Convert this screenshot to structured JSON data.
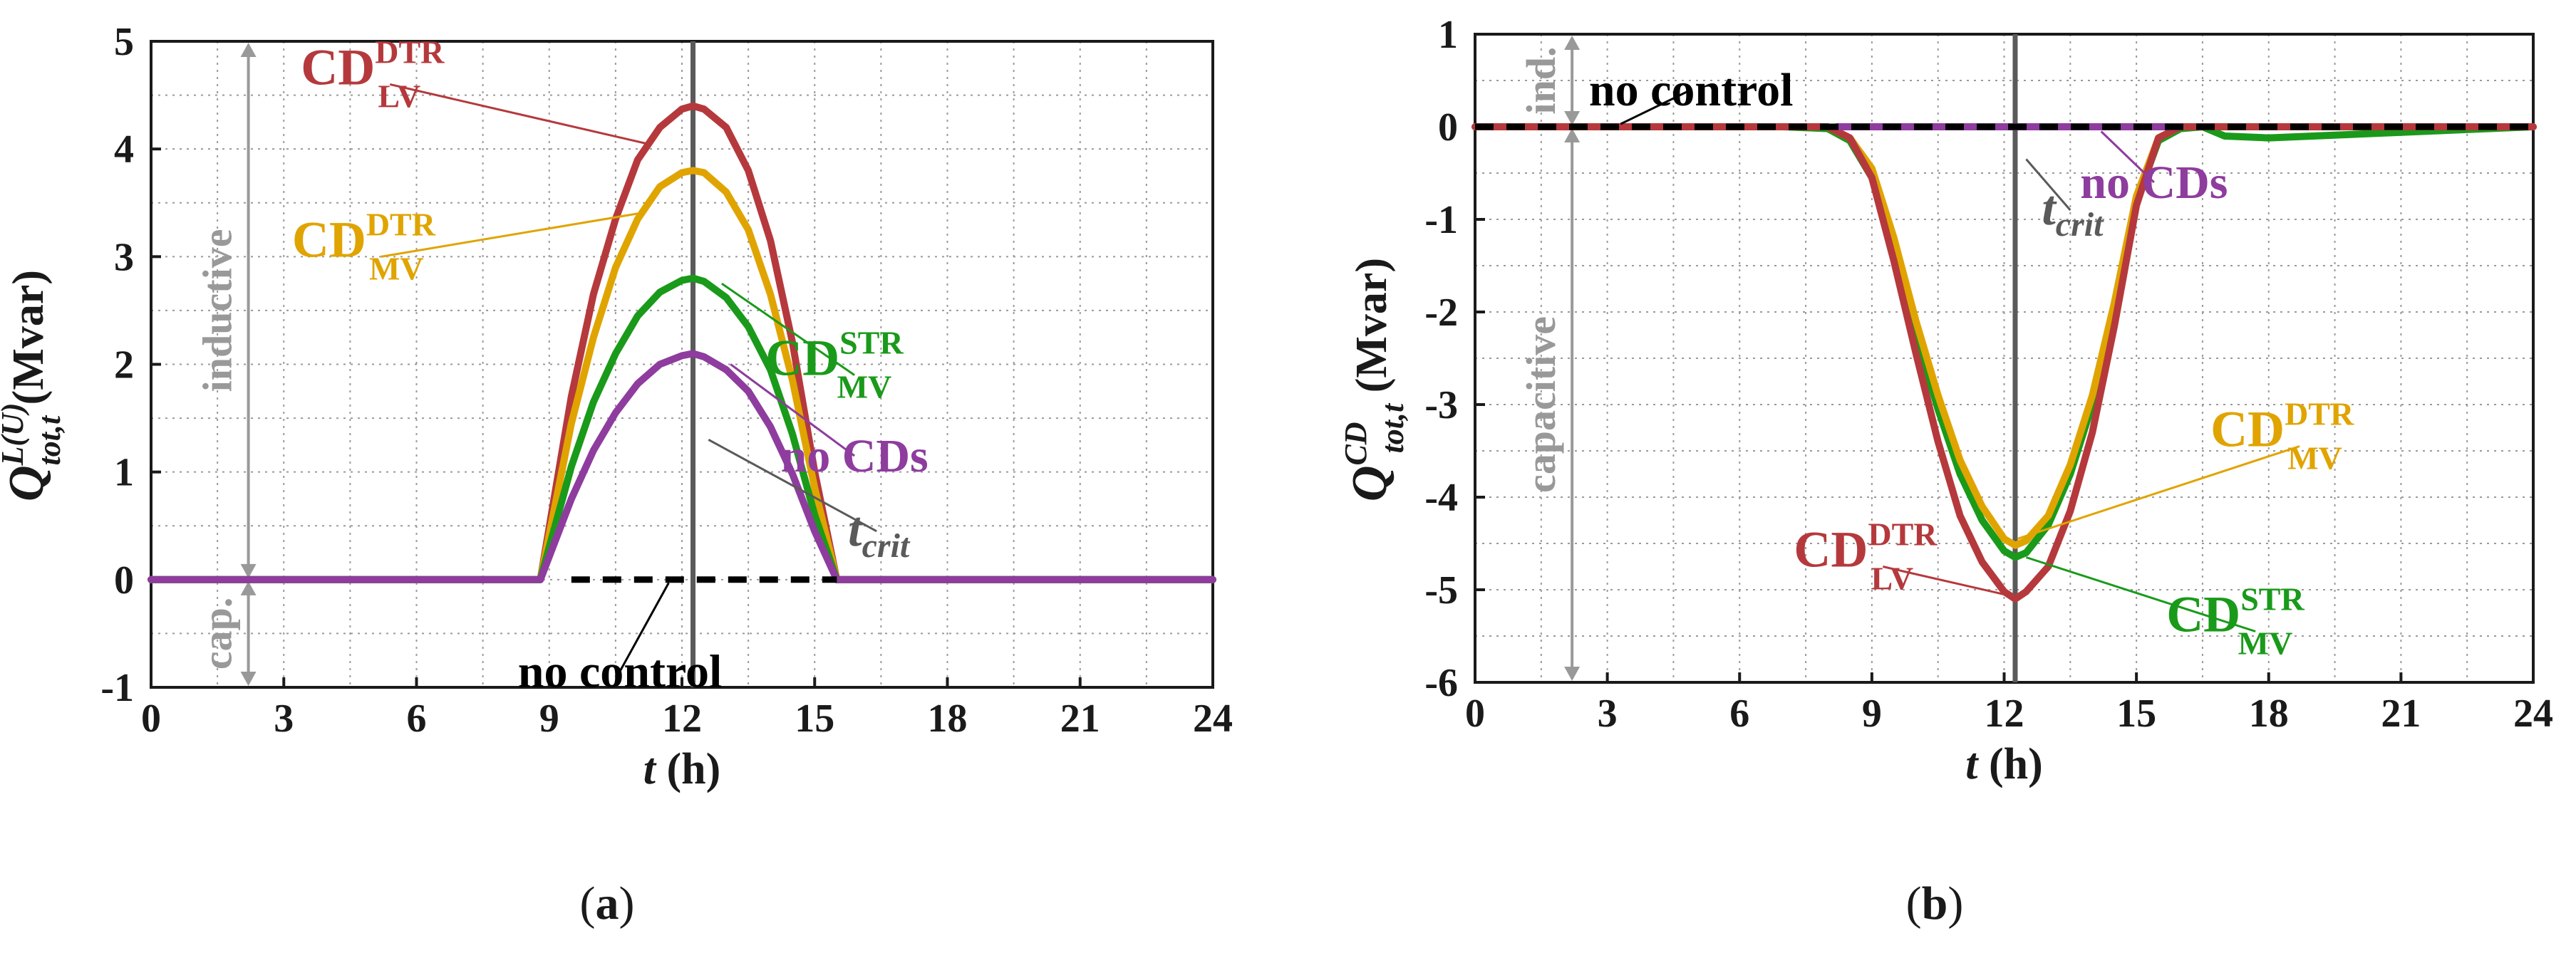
{
  "colors": {
    "lv_dtr": "#b5393c",
    "mv_dtr": "#e0a400",
    "mv_str": "#1a9a1a",
    "no_cds": "#8e3c9e",
    "no_control": "#000000",
    "region": "#999999",
    "tcrit_line": "#5a5a5a"
  },
  "chart_data": [
    {
      "id": "a",
      "type": "line",
      "caption": {
        "open": "(",
        "letter": "a",
        "close": ")"
      },
      "xlabel": {
        "var": "t",
        "unit": "(h)"
      },
      "ylabel": {
        "var": "Q",
        "sup": "L(U)",
        "sub": "tot,t",
        "unit": "(Mvar)"
      },
      "xlim": [
        0,
        24
      ],
      "ylim": [
        -1,
        5
      ],
      "xticks": [
        0,
        3,
        6,
        9,
        12,
        15,
        18,
        21,
        24
      ],
      "yticks": [
        -1,
        0,
        1,
        2,
        3,
        4,
        5
      ],
      "x_grid": [
        0,
        1.5,
        3,
        4.5,
        6,
        7.5,
        9,
        10.5,
        12,
        13.5,
        15,
        16.5,
        18,
        19.5,
        21,
        22.5,
        24
      ],
      "y_grid": [
        -1,
        -0.5,
        0,
        0.5,
        1,
        1.5,
        2,
        2.5,
        3,
        3.5,
        4,
        4.5,
        5
      ],
      "tcrit": 12.25,
      "series": [
        {
          "key": "lv_dtr",
          "name": "CD LV DTR",
          "x": [
            0,
            8.8,
            9.5,
            10,
            10.5,
            11,
            11.5,
            12,
            12.25,
            12.5,
            13,
            13.5,
            14,
            14.5,
            15,
            15.5,
            16,
            24
          ],
          "y": [
            0,
            0,
            1.7,
            2.65,
            3.35,
            3.9,
            4.2,
            4.37,
            4.4,
            4.37,
            4.2,
            3.8,
            3.15,
            2.2,
            1.0,
            0,
            0,
            0
          ]
        },
        {
          "key": "mv_dtr",
          "name": "CD MV DTR",
          "x": [
            0,
            8.8,
            9.5,
            10,
            10.5,
            11,
            11.5,
            12,
            12.25,
            12.5,
            13,
            13.5,
            14,
            14.5,
            15,
            15.5,
            16,
            24
          ],
          "y": [
            0,
            0,
            1.45,
            2.25,
            2.9,
            3.35,
            3.65,
            3.78,
            3.8,
            3.78,
            3.6,
            3.25,
            2.65,
            1.85,
            0.85,
            0,
            0,
            0
          ]
        },
        {
          "key": "mv_str",
          "name": "CD MV STR",
          "x": [
            0,
            8.8,
            9.5,
            10,
            10.5,
            11,
            11.5,
            12,
            12.25,
            12.5,
            13,
            13.5,
            14,
            14.5,
            15,
            15.5,
            16,
            24
          ],
          "y": [
            0,
            0,
            1.05,
            1.65,
            2.1,
            2.45,
            2.67,
            2.78,
            2.8,
            2.77,
            2.62,
            2.35,
            1.95,
            1.35,
            0.6,
            0,
            0,
            0
          ]
        },
        {
          "key": "no_cds",
          "name": "no CDs",
          "x": [
            0,
            8.8,
            9.5,
            10,
            10.5,
            11,
            11.5,
            12,
            12.25,
            12.5,
            13,
            13.5,
            14,
            14.5,
            15,
            15.5,
            16,
            24
          ],
          "y": [
            0,
            0,
            0.75,
            1.2,
            1.55,
            1.82,
            2.0,
            2.08,
            2.1,
            2.07,
            1.95,
            1.75,
            1.42,
            0.98,
            0.45,
            0,
            0,
            0
          ]
        },
        {
          "key": "no_control",
          "name": "no control",
          "dashed": true,
          "x": [
            9.5,
            15.5
          ],
          "y": [
            0,
            0
          ]
        }
      ],
      "annotations": [
        {
          "kind": "cd",
          "key": "lv_dtr",
          "base": "CD",
          "sup": "DTR",
          "sub": "LV",
          "lx": 5.4,
          "ly": 4.6,
          "px": 11.2,
          "py": 4.05
        },
        {
          "kind": "cd",
          "key": "mv_dtr",
          "base": "CD",
          "sup": "DTR",
          "sub": "MV",
          "lx": 5.2,
          "ly": 3.0,
          "px": 11.0,
          "py": 3.4
        },
        {
          "kind": "cd",
          "key": "mv_str",
          "base": "CD",
          "sup": "STR",
          "sub": "MV",
          "lx": 15.9,
          "ly": 1.9,
          "px": 12.9,
          "py": 2.75
        },
        {
          "kind": "plain",
          "key": "no_cds",
          "text": "no CDs",
          "lx": 15.9,
          "ly": 1.15,
          "px": 13.1,
          "py": 2.0
        },
        {
          "kind": "tcrit",
          "key": "tcrit_line",
          "base": "t",
          "sub": "crit",
          "lx": 16.4,
          "ly": 0.45,
          "px": 12.6,
          "py": 1.3
        },
        {
          "kind": "plain",
          "key": "no_control",
          "text": "no control",
          "lx": 10.6,
          "ly": -0.85,
          "px": 11.7,
          "py": -0.03
        }
      ],
      "regions": [
        {
          "label": "inductive",
          "x": 2.2,
          "from": 0,
          "to": 5
        },
        {
          "label": "cap.",
          "x": 2.2,
          "from": -1,
          "to": 0
        }
      ]
    },
    {
      "id": "b",
      "type": "line",
      "caption": {
        "open": "(",
        "letter": "b",
        "close": ")"
      },
      "xlabel": {
        "var": "t",
        "unit": "(h)"
      },
      "ylabel": {
        "var": "Q",
        "sup": "CD",
        "sub": "tot,t",
        "unit": "(Mvar)"
      },
      "xlim": [
        0,
        24
      ],
      "ylim": [
        -6,
        1
      ],
      "xticks": [
        0,
        3,
        6,
        9,
        12,
        15,
        18,
        21,
        24
      ],
      "yticks": [
        -6,
        -5,
        -4,
        -3,
        -2,
        -1,
        0,
        1
      ],
      "x_grid": [
        0,
        1.5,
        3,
        4.5,
        6,
        7.5,
        9,
        10.5,
        12,
        13.5,
        15,
        16.5,
        18,
        19.5,
        21,
        22.5,
        24
      ],
      "y_grid": [
        -6,
        -5.5,
        -5,
        -4.5,
        -4,
        -3.5,
        -3,
        -2.5,
        -2,
        -1.5,
        -1,
        -0.5,
        0,
        0.5,
        1
      ],
      "tcrit": 12.25,
      "series": [
        {
          "key": "mv_str",
          "name": "CD MV STR",
          "x": [
            0,
            7,
            8,
            8.5,
            9,
            9.5,
            10,
            10.5,
            11,
            11.5,
            12,
            12.25,
            12.5,
            13,
            13.5,
            14,
            14.5,
            15,
            15.5,
            16,
            16.5,
            17,
            18,
            20,
            24
          ],
          "y": [
            0,
            0,
            -0.02,
            -0.15,
            -0.55,
            -1.35,
            -2.25,
            -3.05,
            -3.75,
            -4.25,
            -4.58,
            -4.65,
            -4.6,
            -4.3,
            -3.75,
            -3.0,
            -2.0,
            -0.8,
            -0.15,
            -0.02,
            0,
            -0.1,
            -0.12,
            -0.08,
            0
          ]
        },
        {
          "key": "mv_dtr",
          "name": "CD MV DTR",
          "x": [
            0,
            8,
            8.5,
            9,
            9.5,
            10,
            10.5,
            11,
            11.5,
            12,
            12.25,
            12.5,
            13,
            13.5,
            14,
            14.5,
            15,
            15.5,
            16,
            16.5,
            24
          ],
          "y": [
            0,
            0,
            -0.12,
            -0.45,
            -1.2,
            -2.1,
            -2.9,
            -3.6,
            -4.1,
            -4.45,
            -4.52,
            -4.47,
            -4.2,
            -3.65,
            -2.9,
            -1.9,
            -0.75,
            -0.12,
            0,
            0,
            0
          ]
        },
        {
          "key": "lv_dtr",
          "name": "CD LV DTR",
          "x": [
            0,
            8,
            8.5,
            9,
            9.5,
            10,
            10.5,
            11,
            11.5,
            12,
            12.25,
            12.5,
            13,
            13.5,
            14,
            14.5,
            15,
            15.5,
            16,
            16.5,
            24
          ],
          "y": [
            0,
            0,
            -0.12,
            -0.55,
            -1.45,
            -2.45,
            -3.4,
            -4.2,
            -4.7,
            -5.02,
            -5.1,
            -5.02,
            -4.75,
            -4.15,
            -3.3,
            -2.15,
            -0.85,
            -0.12,
            0,
            0,
            0
          ]
        },
        {
          "key": "no_cds",
          "name": "no CDs",
          "x": [
            8.2,
            16.0
          ],
          "y": [
            0,
            0
          ]
        },
        {
          "key": "no_control",
          "name": "no control",
          "dashed": true,
          "x": [
            0,
            24
          ],
          "y": [
            0,
            0
          ]
        }
      ],
      "annotations": [
        {
          "kind": "plain",
          "key": "no_control",
          "text": "no control",
          "lx": 4.9,
          "ly": 0.4,
          "px": 3.3,
          "py": 0.03
        },
        {
          "kind": "tcrit",
          "key": "tcrit_line",
          "base": "t",
          "sub": "crit",
          "lx": 13.5,
          "ly": -0.9,
          "px": 12.5,
          "py": -0.35
        },
        {
          "kind": "plain",
          "key": "no_cds",
          "text": "no CDs",
          "lx": 15.4,
          "ly": -0.6,
          "px": 14.2,
          "py": -0.05
        },
        {
          "kind": "cd",
          "key": "mv_dtr",
          "base": "CD",
          "sup": "DTR",
          "sub": "MV",
          "lx": 18.7,
          "ly": -3.45,
          "px": 12.3,
          "py": -4.45
        },
        {
          "kind": "cd",
          "key": "lv_dtr",
          "base": "CD",
          "sup": "DTR",
          "sub": "LV",
          "lx": 9.25,
          "ly": -4.75,
          "px": 12.0,
          "py": -5.05
        },
        {
          "kind": "cd",
          "key": "mv_str",
          "base": "CD",
          "sup": "STR",
          "sub": "MV",
          "lx": 17.7,
          "ly": -5.45,
          "px": 12.5,
          "py": -4.65
        }
      ],
      "regions": [
        {
          "label": "ind.",
          "x": 2.2,
          "from": 0,
          "to": 1
        },
        {
          "label": "capacitive",
          "x": 2.2,
          "from": -6,
          "to": 0
        }
      ]
    }
  ]
}
